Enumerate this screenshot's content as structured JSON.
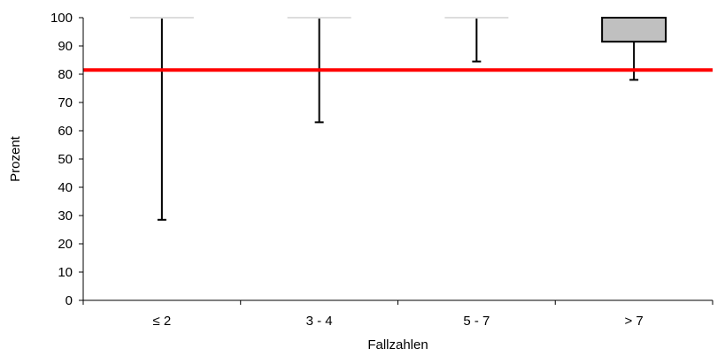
{
  "chart_data": {
    "type": "boxplot",
    "xlabel": "Fallzahlen",
    "ylabel": "Prozent",
    "ylim": [
      0,
      100
    ],
    "yticks": [
      0,
      10,
      20,
      30,
      40,
      50,
      60,
      70,
      80,
      90,
      100
    ],
    "grid": false,
    "categories": [
      "≤ 2",
      "3 - 4",
      "5 - 7",
      "> 7"
    ],
    "boxes": [
      {
        "category": "≤ 2",
        "min": 28.5,
        "q1": 100,
        "median": 100,
        "q3": 100,
        "max": 100
      },
      {
        "category": "3 - 4",
        "min": 63,
        "q1": 100,
        "median": 100,
        "q3": 100,
        "max": 100
      },
      {
        "category": "5 - 7",
        "min": 84.5,
        "q1": 100,
        "median": 100,
        "q3": 100,
        "max": 100
      },
      {
        "category": "> 7",
        "min": 78,
        "q1": 91.5,
        "median": 100,
        "q3": 100,
        "max": 100
      }
    ],
    "reference_line": {
      "value": 81.5,
      "color": "#ff0000"
    },
    "colors": {
      "box_fill": "#c0c0c0",
      "box_stroke": "#000000",
      "axis": "#000000"
    }
  }
}
